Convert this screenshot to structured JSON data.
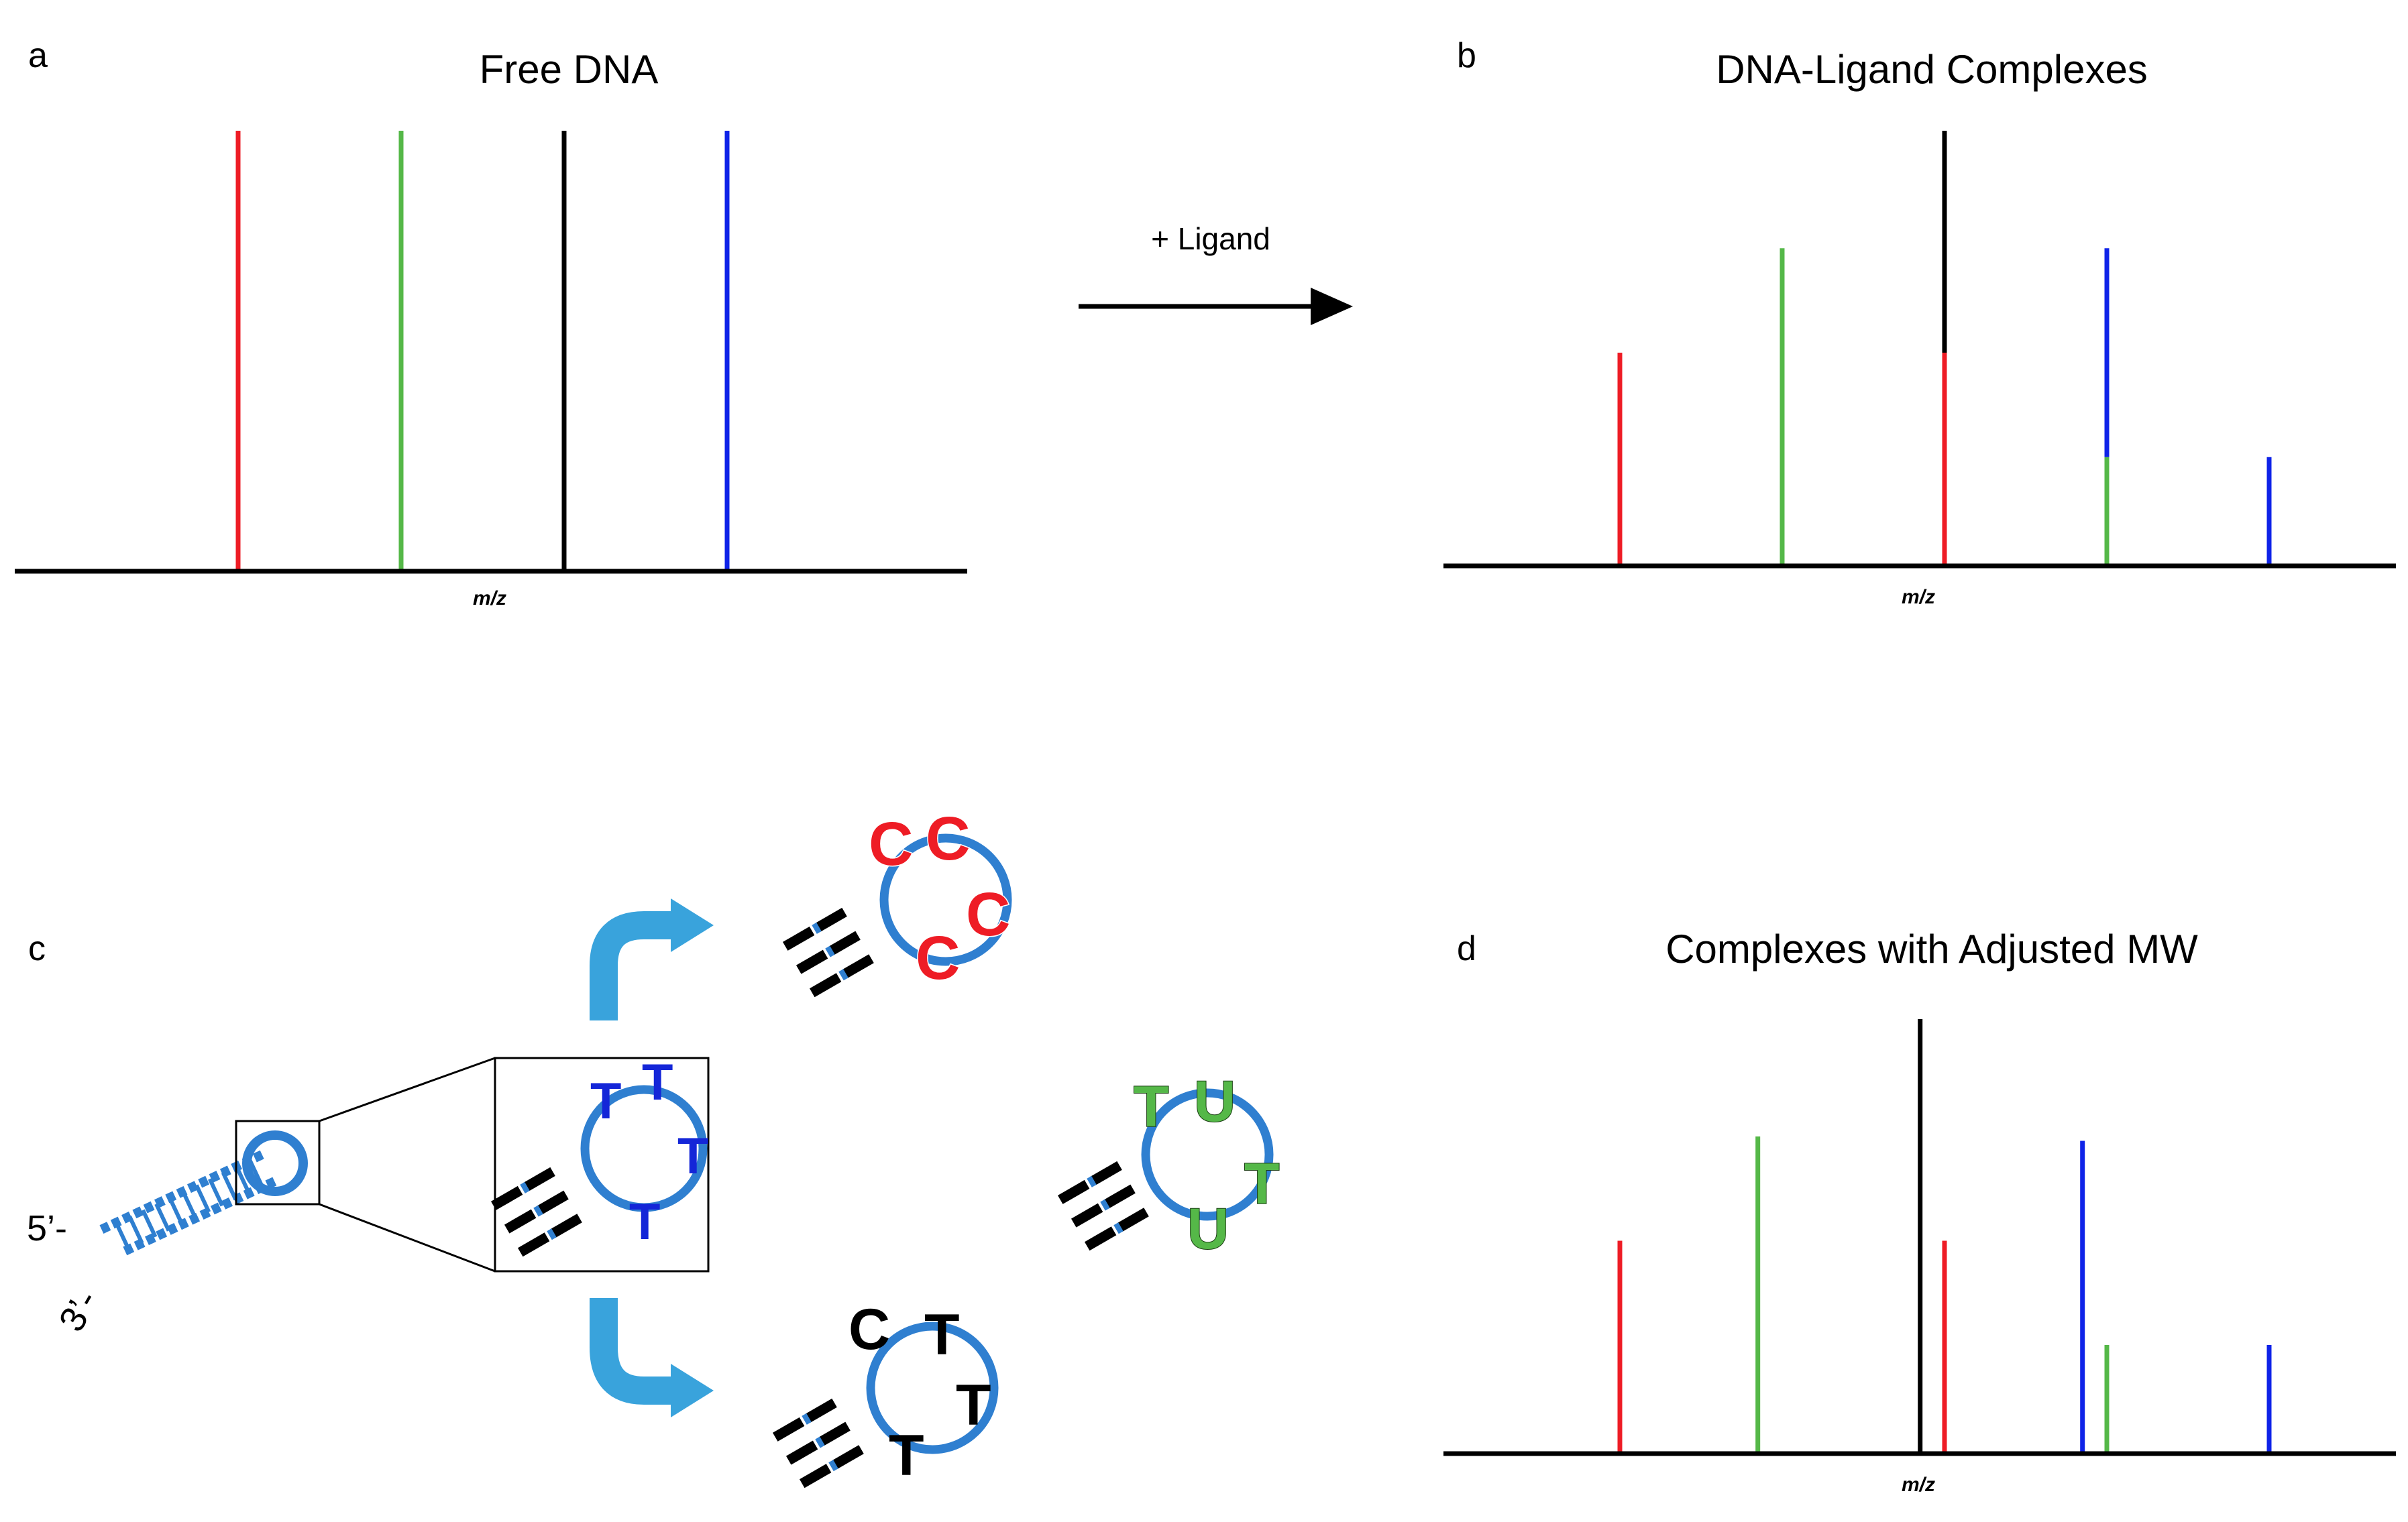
{
  "panels": {
    "a": {
      "letter": "a",
      "title": "Free DNA",
      "xlabel": "m/z"
    },
    "b": {
      "letter": "b",
      "title": "DNA-Ligand Complexes",
      "xlabel": "m/z"
    },
    "c": {
      "letter": "c",
      "label_5prime": "5’-",
      "label_3prime": "3’-",
      "loops": {
        "zoom": [
          "T",
          "T",
          "T",
          "T"
        ],
        "red": [
          "C",
          "C",
          "C",
          "C"
        ],
        "black": [
          "C",
          "T",
          "T",
          "T"
        ],
        "green": [
          "T",
          "U",
          "T",
          "U"
        ]
      }
    },
    "d": {
      "letter": "d",
      "title": "Complexes with Adjusted MW",
      "xlabel": "m/z"
    }
  },
  "arrow": {
    "label": "+ Ligand"
  },
  "colors": {
    "red": "#ee1c25",
    "green": "#55b848",
    "black": "#000000",
    "blue": "#0f23e8",
    "dna_blue": "#2f7fd0",
    "arrow_blue": "#39a3dc",
    "loop_blue_letters": "#1426d8"
  },
  "chart_data": [
    {
      "panel": "a",
      "type": "bar",
      "title": "Free DNA",
      "xlabel": "m/z",
      "ylabel": "",
      "ylim": [
        0,
        100
      ],
      "bars": [
        {
          "x": 1,
          "value": 100,
          "color": "red"
        },
        {
          "x": 2,
          "value": 100,
          "color": "green"
        },
        {
          "x": 3,
          "value": 100,
          "color": "black"
        },
        {
          "x": 4,
          "value": 100,
          "color": "blue"
        }
      ]
    },
    {
      "panel": "b",
      "type": "bar",
      "title": "DNA-Ligand Complexes",
      "xlabel": "m/z",
      "ylabel": "",
      "ylim": [
        0,
        100
      ],
      "bars": [
        {
          "x": 1,
          "segments": [
            {
              "value": 49,
              "color": "red"
            }
          ]
        },
        {
          "x": 2,
          "segments": [
            {
              "value": 73,
              "color": "green"
            }
          ]
        },
        {
          "x": 3,
          "segments": [
            {
              "value": 49,
              "color": "red"
            },
            {
              "value": 51,
              "color": "black"
            }
          ]
        },
        {
          "x": 4,
          "segments": [
            {
              "value": 25,
              "color": "green"
            },
            {
              "value": 48,
              "color": "blue"
            }
          ]
        },
        {
          "x": 5,
          "segments": [
            {
              "value": 25,
              "color": "blue"
            }
          ]
        }
      ]
    },
    {
      "panel": "d",
      "type": "bar",
      "title": "Complexes with Adjusted MW",
      "xlabel": "m/z",
      "ylabel": "",
      "ylim": [
        0,
        100
      ],
      "bars": [
        {
          "x": 1.0,
          "value": 49,
          "color": "red"
        },
        {
          "x": 1.85,
          "value": 73,
          "color": "green"
        },
        {
          "x": 2.85,
          "value": 100,
          "color": "black"
        },
        {
          "x": 3.0,
          "value": 49,
          "color": "red"
        },
        {
          "x": 3.85,
          "value": 72,
          "color": "blue"
        },
        {
          "x": 4.0,
          "value": 25,
          "color": "green"
        },
        {
          "x": 5.0,
          "value": 25,
          "color": "blue"
        }
      ]
    }
  ]
}
